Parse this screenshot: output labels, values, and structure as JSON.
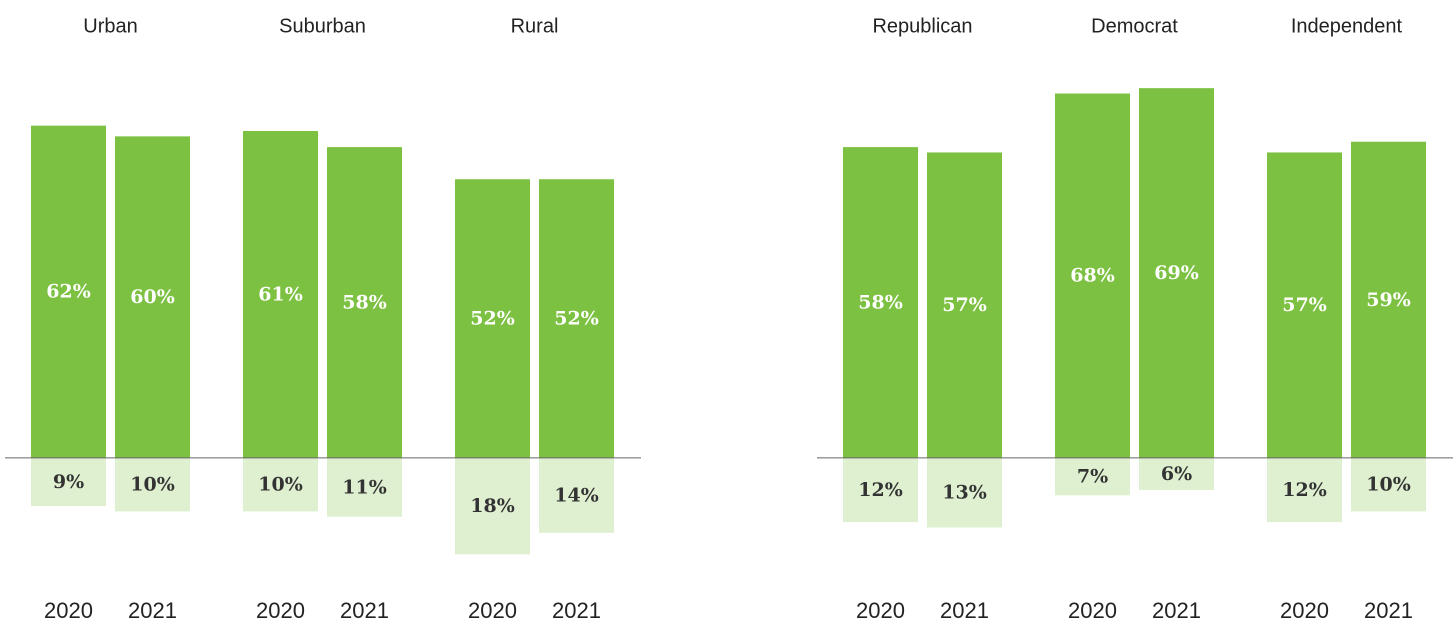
{
  "chart_data": [
    {
      "type": "bar",
      "groups": [
        "Urban",
        "Suburban",
        "Rural"
      ],
      "categories": [
        "2020",
        "2021",
        "2020",
        "2021",
        "2020",
        "2021"
      ],
      "series": [
        {
          "color": "#7dc142",
          "values": [
            62,
            60,
            61,
            58,
            52,
            52
          ],
          "value_labels": [
            "62%",
            "60%",
            "61%",
            "58%",
            "52%",
            "52%"
          ]
        },
        {
          "color": "#dff0d0",
          "values": [
            -9,
            -10,
            -10,
            -11,
            -18,
            -14
          ],
          "value_labels": [
            "9%",
            "10%",
            "10%",
            "11%",
            "18%",
            "14%"
          ]
        }
      ],
      "ylim": [
        -20,
        75
      ]
    },
    {
      "type": "bar",
      "groups": [
        "Republican",
        "Democrat",
        "Independent"
      ],
      "categories": [
        "2020",
        "2021",
        "2020",
        "2021",
        "2020",
        "2021"
      ],
      "series": [
        {
          "color": "#7dc142",
          "values": [
            58,
            57,
            68,
            69,
            57,
            59
          ],
          "value_labels": [
            "58%",
            "57%",
            "68%",
            "69%",
            "57%",
            "59%"
          ]
        },
        {
          "color": "#dff0d0",
          "values": [
            -12,
            -13,
            -7,
            -6,
            -12,
            -10
          ],
          "value_labels": [
            "12%",
            "13%",
            "7%",
            "6%",
            "12%",
            "10%"
          ]
        }
      ],
      "ylim": [
        -20,
        75
      ]
    }
  ]
}
